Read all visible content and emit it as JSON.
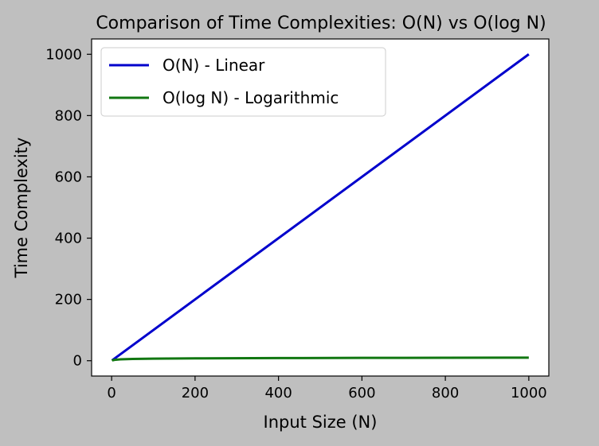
{
  "chart_data": {
    "type": "line",
    "title": "Comparison of Time Complexities: O(N) vs O(log N)",
    "xlabel": "Input Size (N)",
    "ylabel": "Time Complexity",
    "xlim": [
      -48,
      1048
    ],
    "ylim": [
      -50,
      1050
    ],
    "xticks": [
      0,
      200,
      400,
      600,
      800,
      1000
    ],
    "yticks": [
      0,
      200,
      400,
      600,
      800,
      1000
    ],
    "grid": false,
    "legend_position": "top-left",
    "series": [
      {
        "name": "O(N) - Linear",
        "color": "#0000cc",
        "formula": "N",
        "x": [
          1,
          1000
        ],
        "y": [
          1,
          1000
        ]
      },
      {
        "name": "O(log N) - Logarithmic",
        "color": "#117711",
        "formula": "log2(N)",
        "x": [
          1,
          2,
          5,
          10,
          20,
          50,
          100,
          200,
          400,
          600,
          800,
          1000
        ],
        "y": [
          0,
          1,
          2.32,
          3.32,
          4.32,
          5.64,
          6.64,
          7.64,
          8.64,
          9.23,
          9.64,
          9.97
        ]
      }
    ]
  }
}
